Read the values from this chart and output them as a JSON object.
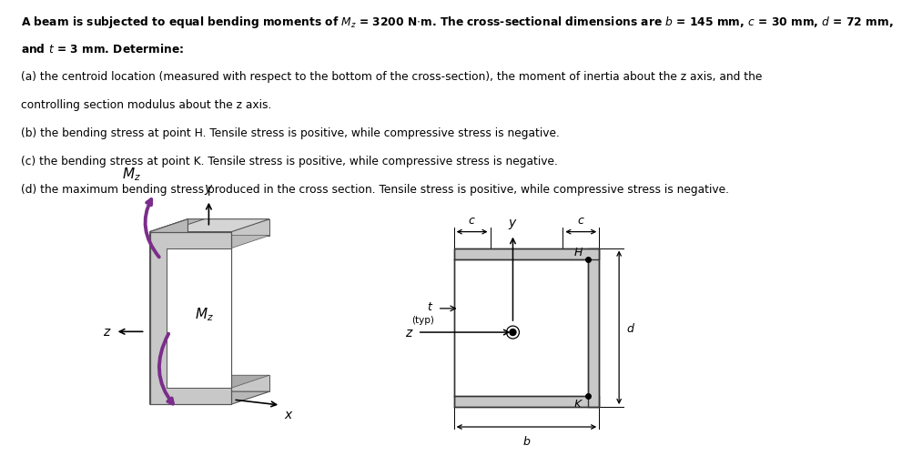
{
  "bg_color": "#ffffff",
  "text_color": "#000000",
  "arrow_color": "#7b2d8b",
  "edge_col": "#555555",
  "face_light": "#d8d8d8",
  "face_mid": "#c0c0c0",
  "face_dark": "#a8a8a8",
  "cs_fill": "#c8c8c8",
  "cs_edge": "#333333",
  "text_lines": [
    "A beam is subjected to equal bending moments of \\textit{M}\\textsubscript{z} = 3200 N\\cdotm. The cross-sectional dimensions are \\textit{b} = 145 mm, \\textit{c} = 30 mm, \\textit{d} = 72 mm,",
    "and \\textit{t} = 3 mm. Determine:",
    "(a) the centroid location (measured with respect to the bottom of the cross-section), the moment of inertia about the z axis, and the",
    "controlling section modulus about the z axis.",
    "(b) the bending stress at point H. Tensile stress is positive, while compressive stress is negative.",
    "(c) the bending stress at point K. Tensile stress is positive, while compressive stress is negative.",
    "(d) the maximum bending stress produced in the cross section. Tensile stress is positive, while compressive stress is negative."
  ]
}
